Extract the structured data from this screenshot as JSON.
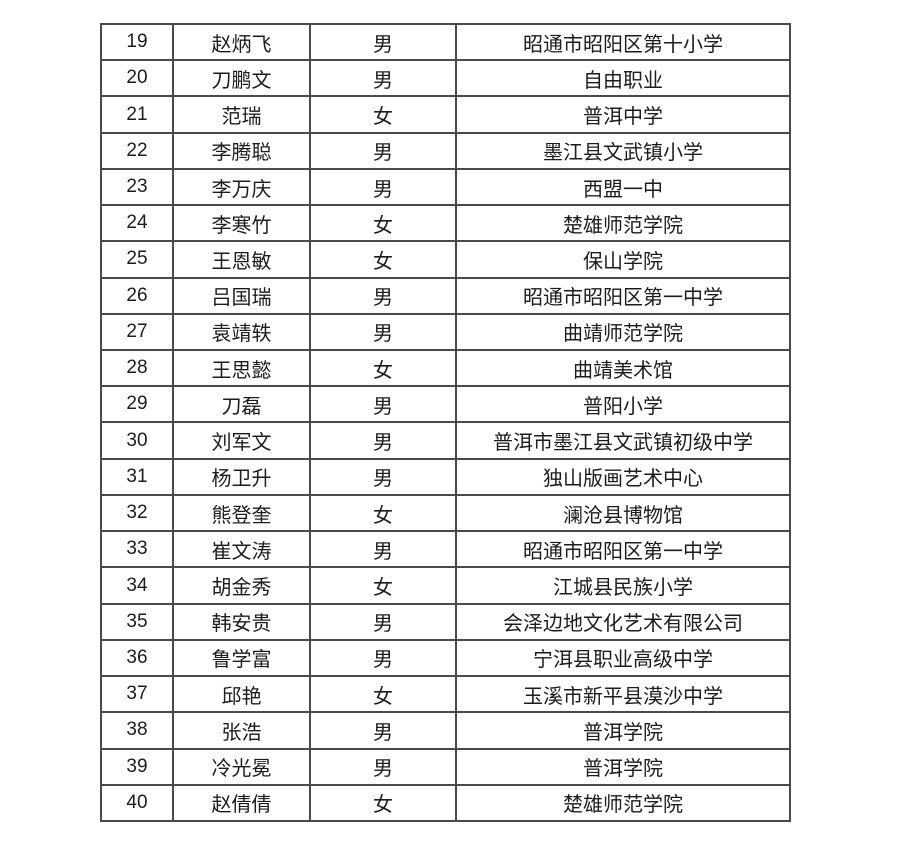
{
  "colors": {
    "background": "#ffffff",
    "table_border": "#4a4a4a",
    "text": "#1c1c1c"
  },
  "table": {
    "visible_row_range": "19-40",
    "columns": [
      "number",
      "name",
      "gender",
      "institution"
    ],
    "rows": [
      {
        "number": "19",
        "name": "赵炳飞",
        "gender": "男",
        "institution": "昭通市昭阳区第十小学"
      },
      {
        "number": "20",
        "name": "刀鹏文",
        "gender": "男",
        "institution": "自由职业"
      },
      {
        "number": "21",
        "name": "范瑞",
        "gender": "女",
        "institution": "普洱中学"
      },
      {
        "number": "22",
        "name": "李腾聪",
        "gender": "男",
        "institution": "墨江县文武镇小学"
      },
      {
        "number": "23",
        "name": "李万庆",
        "gender": "男",
        "institution": "西盟一中"
      },
      {
        "number": "24",
        "name": "李寒竹",
        "gender": "女",
        "institution": "楚雄师范学院"
      },
      {
        "number": "25",
        "name": "王恩敏",
        "gender": "女",
        "institution": "保山学院"
      },
      {
        "number": "26",
        "name": "吕国瑞",
        "gender": "男",
        "institution": "昭通市昭阳区第一中学"
      },
      {
        "number": "27",
        "name": "袁靖轶",
        "gender": "男",
        "institution": "曲靖师范学院"
      },
      {
        "number": "28",
        "name": "王思懿",
        "gender": "女",
        "institution": "曲靖美术馆"
      },
      {
        "number": "29",
        "name": "刀磊",
        "gender": "男",
        "institution": "普阳小学"
      },
      {
        "number": "30",
        "name": "刘军文",
        "gender": "男",
        "institution": "普洱市墨江县文武镇初级中学"
      },
      {
        "number": "31",
        "name": "杨卫升",
        "gender": "男",
        "institution": "独山版画艺术中心"
      },
      {
        "number": "32",
        "name": "熊登奎",
        "gender": "女",
        "institution": "澜沧县博物馆"
      },
      {
        "number": "33",
        "name": "崔文涛",
        "gender": "男",
        "institution": "昭通市昭阳区第一中学"
      },
      {
        "number": "34",
        "name": "胡金秀",
        "gender": "女",
        "institution": "江城县民族小学"
      },
      {
        "number": "35",
        "name": "韩安贵",
        "gender": "男",
        "institution": "会泽边地文化艺术有限公司"
      },
      {
        "number": "36",
        "name": "鲁学富",
        "gender": "男",
        "institution": "宁洱县职业高级中学"
      },
      {
        "number": "37",
        "name": "邱艳",
        "gender": "女",
        "institution": "玉溪市新平县漠沙中学"
      },
      {
        "number": "38",
        "name": "张浩",
        "gender": "男",
        "institution": "普洱学院"
      },
      {
        "number": "39",
        "name": "冷光冕",
        "gender": "男",
        "institution": "普洱学院"
      },
      {
        "number": "40",
        "name": "赵倩倩",
        "gender": "女",
        "institution": "楚雄师范学院"
      }
    ]
  }
}
